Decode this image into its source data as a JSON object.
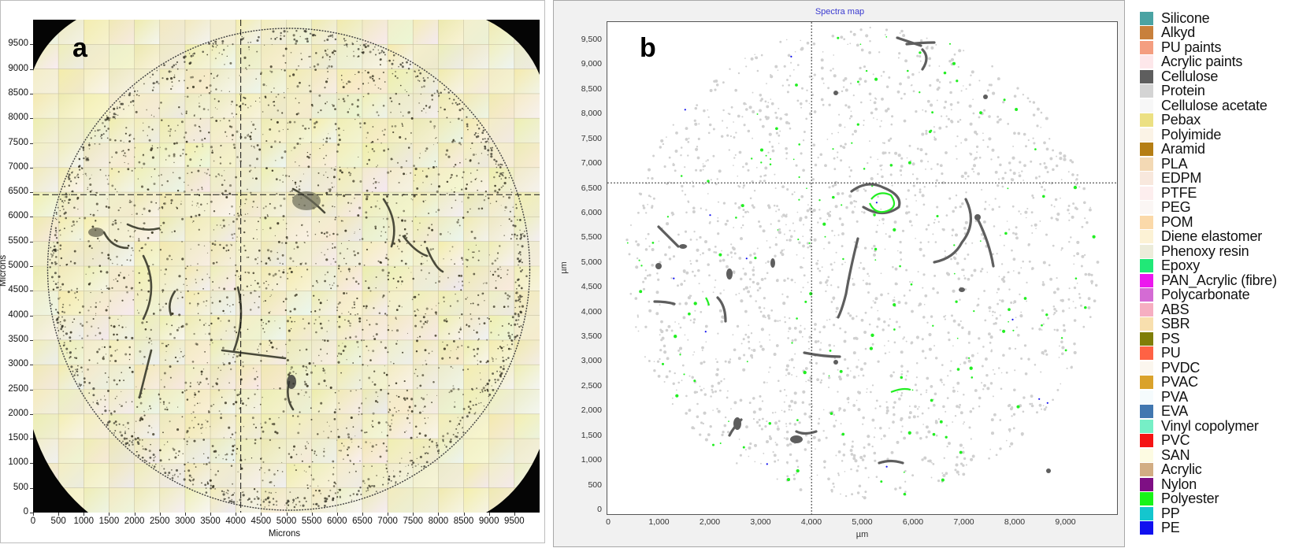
{
  "panel_a": {
    "letter": "a",
    "xlabel": "Microns",
    "ylabel": "Microns",
    "yticks": [
      "9500",
      "9000",
      "8500",
      "8000",
      "7500",
      "7000",
      "6500",
      "6000",
      "5500",
      "5000",
      "4500",
      "4000",
      "3500",
      "3000",
      "2500",
      "2000",
      "1500",
      "1000",
      "500",
      "0"
    ],
    "xticks": [
      "0",
      "500",
      "1000",
      "1500",
      "2000",
      "2500",
      "3000",
      "3500",
      "4000",
      "4500",
      "5000",
      "5500",
      "6000",
      "6500",
      "7000",
      "7500",
      "8000",
      "8500",
      "9000",
      "9500"
    ],
    "crosshair": {
      "x": 4100,
      "y": 6450
    }
  },
  "panel_b": {
    "letter": "b",
    "title": "Spectra map",
    "xlabel": "µm",
    "ylabel": "µm",
    "yticks": [
      "9,500",
      "9,000",
      "8,500",
      "8,000",
      "7,500",
      "7,000",
      "6,500",
      "6,000",
      "5,500",
      "5,000",
      "4,500",
      "4,000",
      "3,500",
      "3,000",
      "2,500",
      "2,000",
      "1,500",
      "1,000",
      "500",
      "0"
    ],
    "xticks": [
      "0",
      "1,000",
      "2,000",
      "3,000",
      "4,000",
      "5,000",
      "6,000",
      "7,000",
      "8,000",
      "9,000"
    ],
    "crosshair": {
      "x": 4000,
      "y": 6600
    }
  },
  "legend": [
    {
      "label": "Silicone",
      "color": "#4aa3a3"
    },
    {
      "label": "Alkyd",
      "color": "#c8803c"
    },
    {
      "label": "PU paints",
      "color": "#f49e80"
    },
    {
      "label": "Acrylic paints",
      "color": "#fde7ea"
    },
    {
      "label": "Cellulose",
      "color": "#5e5e5e"
    },
    {
      "label": "Protein",
      "color": "#d4d4d4"
    },
    {
      "label": "Cellulose acetate",
      "color": "#f7f7f7"
    },
    {
      "label": "Pebax",
      "color": "#ece083"
    },
    {
      "label": "Polyimide",
      "color": "#fbf3e6"
    },
    {
      "label": "Aramid",
      "color": "#b57e14"
    },
    {
      "label": "PLA",
      "color": "#f3d9b4"
    },
    {
      "label": "EDPM",
      "color": "#f8e8dd"
    },
    {
      "label": "PTFE",
      "color": "#fdeeee"
    },
    {
      "label": "PEG",
      "color": "#fbf6f4"
    },
    {
      "label": "POM",
      "color": "#fbd9a9"
    },
    {
      "label": "Diene elastomer",
      "color": "#fcf2d5"
    },
    {
      "label": "Phenoxy resin",
      "color": "#ececda"
    },
    {
      "label": "Epoxy",
      "color": "#21e877"
    },
    {
      "label": "PAN_Acrylic (fibre)",
      "color": "#ec17ee"
    },
    {
      "label": "Polycarbonate",
      "color": "#d46bd4"
    },
    {
      "label": "ABS",
      "color": "#f6aec1"
    },
    {
      "label": "SBR",
      "color": "#f8dfae"
    },
    {
      "label": "PS",
      "color": "#7f7e08"
    },
    {
      "label": "PU",
      "color": "#ff6244"
    },
    {
      "label": "PVDC",
      "color": "#fbf6ee"
    },
    {
      "label": "PVAC",
      "color": "#daa22b"
    },
    {
      "label": "PVA",
      "color": "#f5fbfd"
    },
    {
      "label": "EVA",
      "color": "#4177b0"
    },
    {
      "label": "Vinyl copolymer",
      "color": "#76efc6"
    },
    {
      "label": "PVC",
      "color": "#f51414"
    },
    {
      "label": "SAN",
      "color": "#fdfbe2"
    },
    {
      "label": "Acrylic",
      "color": "#d2ad83"
    },
    {
      "label": "Nylon",
      "color": "#7e0f84"
    },
    {
      "label": "Polyester",
      "color": "#18f418"
    },
    {
      "label": "PP",
      "color": "#14c6ce"
    },
    {
      "label": "PE",
      "color": "#1010ef"
    }
  ]
}
